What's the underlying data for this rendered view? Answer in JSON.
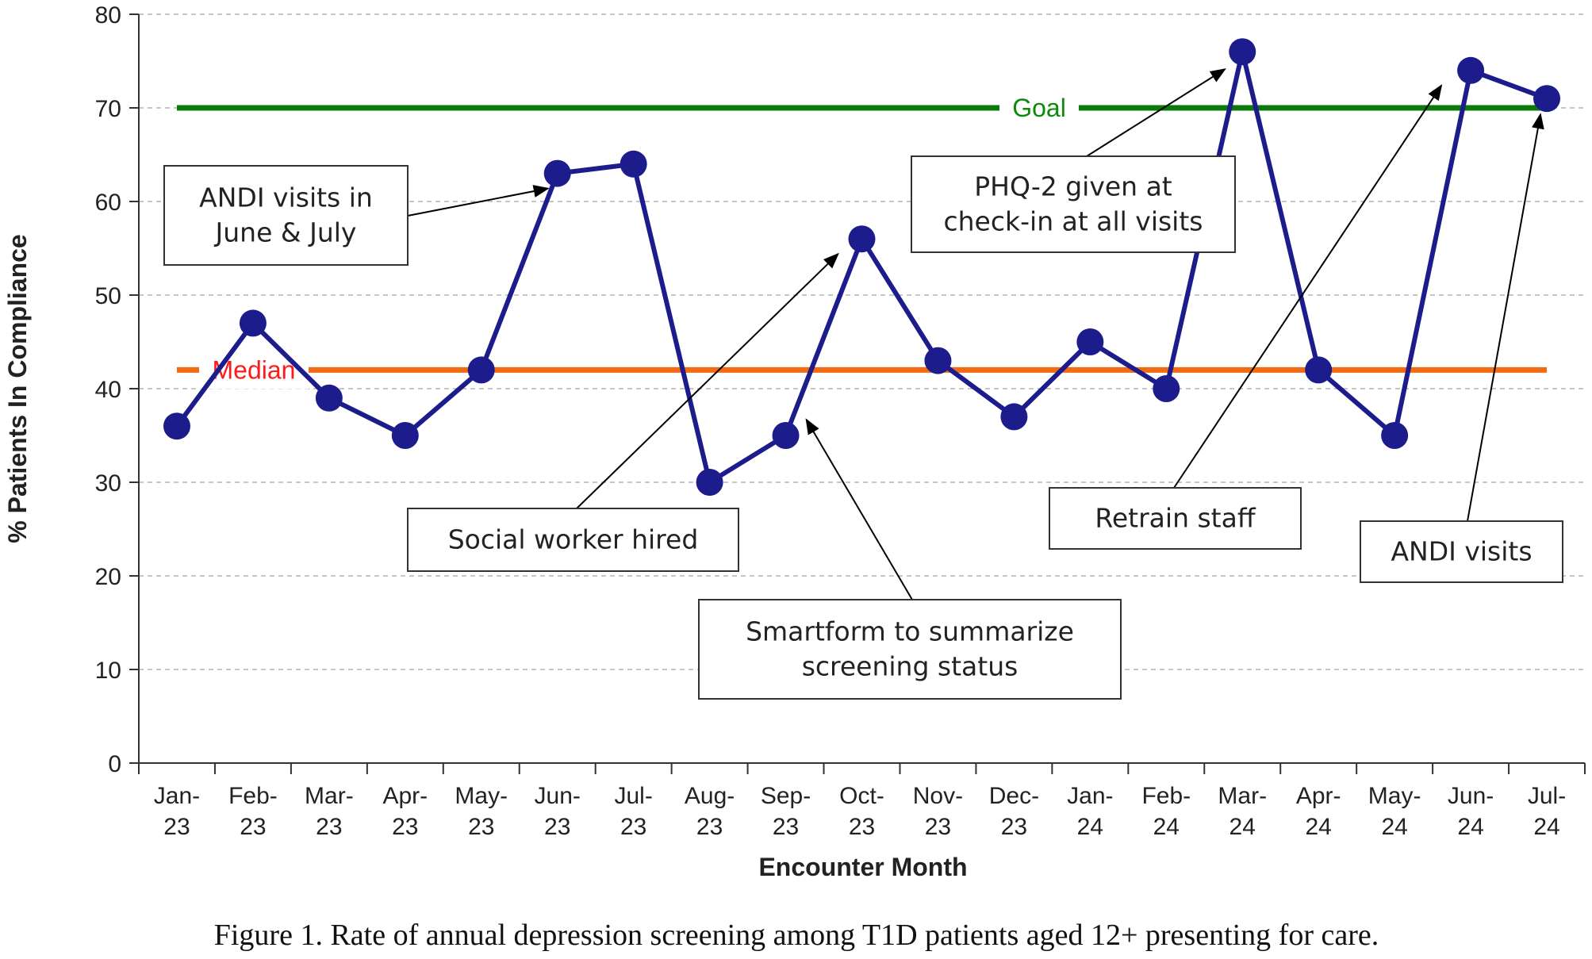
{
  "chart_data": {
    "type": "line",
    "xlabel": "Encounter Month",
    "ylabel": "% Patients In Compliance",
    "ylim": [
      0,
      80
    ],
    "yticks": [
      0,
      10,
      20,
      30,
      40,
      50,
      60,
      70,
      80
    ],
    "grid": "horizontal dashed",
    "categories": [
      [
        "Jan-",
        "23"
      ],
      [
        "Feb-",
        "23"
      ],
      [
        "Mar-",
        "23"
      ],
      [
        "Apr-",
        "23"
      ],
      [
        "May-",
        "23"
      ],
      [
        "Jun-",
        "23"
      ],
      [
        "Jul-",
        "23"
      ],
      [
        "Aug-",
        "23"
      ],
      [
        "Sep-",
        "23"
      ],
      [
        "Oct-",
        "23"
      ],
      [
        "Nov-",
        "23"
      ],
      [
        "Dec-",
        "23"
      ],
      [
        "Jan-",
        "24"
      ],
      [
        "Feb-",
        "24"
      ],
      [
        "Mar-",
        "24"
      ],
      [
        "Apr-",
        "24"
      ],
      [
        "May-",
        "24"
      ],
      [
        "Jun-",
        "24"
      ],
      [
        "Jul-",
        "24"
      ]
    ],
    "series": [
      {
        "color": "#1c1c8c",
        "values": [
          36,
          47,
          39,
          35,
          42,
          63,
          64,
          30,
          35,
          56,
          43,
          37,
          45,
          40,
          76,
          42,
          35,
          74,
          71
        ]
      }
    ],
    "reference_lines": [
      {
        "name": "Goal",
        "value": 70,
        "color": "#0b7a0b",
        "label_color": "#0b8a0b"
      },
      {
        "name": "Median",
        "value": 42,
        "color": "#f26a12",
        "label_color": "#ff1a1a"
      }
    ],
    "annotations": [
      {
        "lines": [
          "ANDI visits in",
          "June & July"
        ],
        "point_index": 5
      },
      {
        "lines": [
          "Social worker hired"
        ],
        "point_index": 9
      },
      {
        "lines": [
          "Smartform to summarize",
          "screening status"
        ],
        "point_index": 8
      },
      {
        "lines": [
          "PHQ-2 given at",
          "check-in at all visits"
        ],
        "point_index": 14
      },
      {
        "lines": [
          "Retrain staff"
        ],
        "point_index": 17
      },
      {
        "lines": [
          "ANDI visits"
        ],
        "point_index": 18
      }
    ]
  },
  "caption": "Figure 1. Rate of annual depression screening among T1D patients aged 12+ presenting for care."
}
